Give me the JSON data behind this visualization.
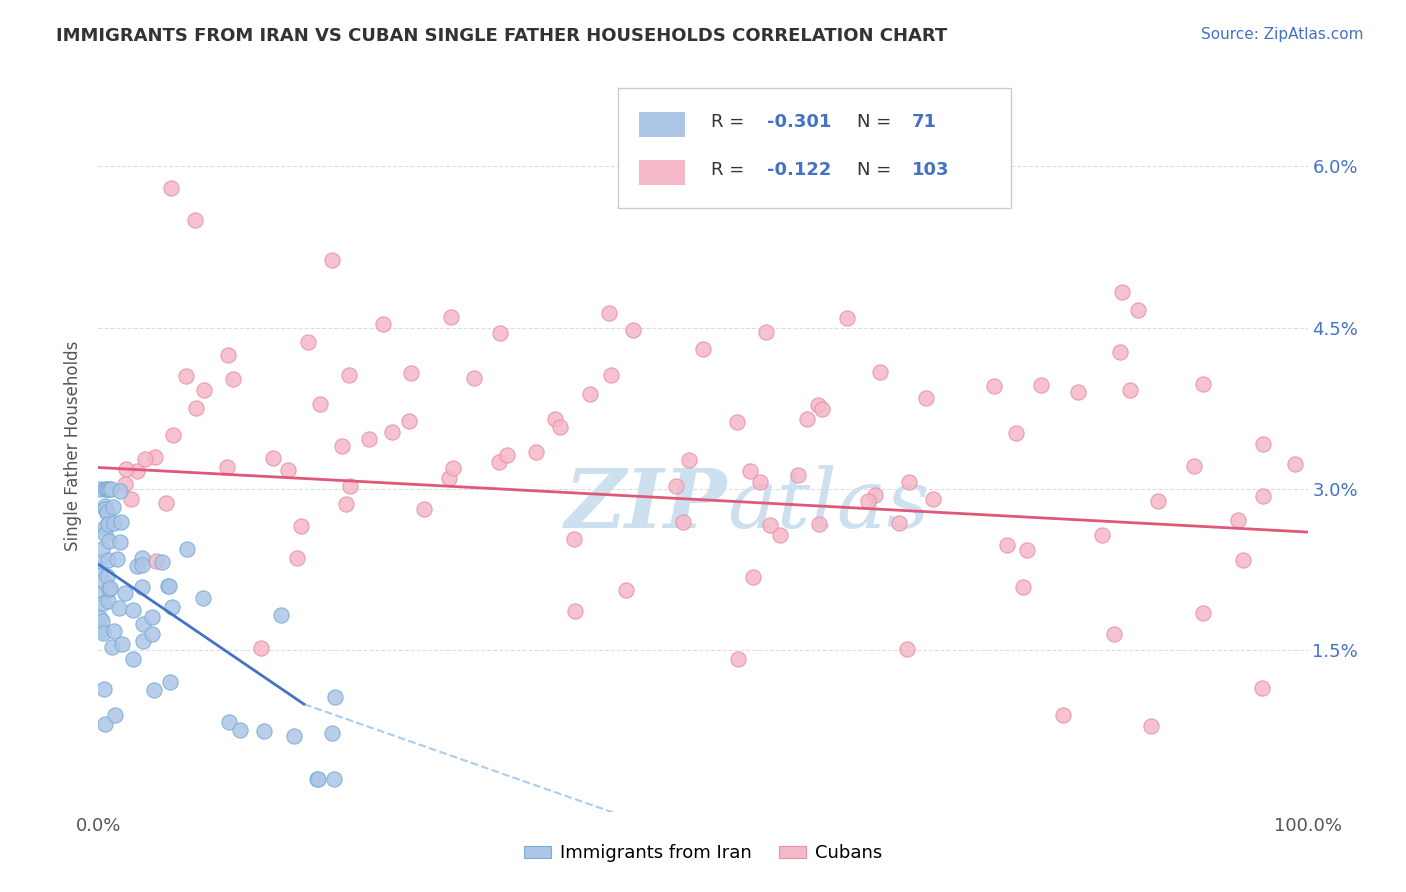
{
  "title": "IMMIGRANTS FROM IRAN VS CUBAN SINGLE FATHER HOUSEHOLDS CORRELATION CHART",
  "source": "Source: ZipAtlas.com",
  "ylabel": "Single Father Households",
  "xlim": [
    0.0,
    1.0
  ],
  "ylim": [
    0.0,
    0.068
  ],
  "ytick_vals": [
    0.0,
    0.015,
    0.03,
    0.045,
    0.06
  ],
  "ytick_labels": [
    "",
    "1.5%",
    "3.0%",
    "4.5%",
    "6.0%"
  ],
  "background_color": "#ffffff",
  "grid_color": "#dddddd",
  "iran_fill_color": "#adc6e8",
  "iran_edge_color": "#7aadd4",
  "cuba_fill_color": "#f5b8c8",
  "cuba_edge_color": "#e890a8",
  "iran_line_color": "#4472c4",
  "cuba_line_color": "#e05878",
  "dash_color": "#aaccee",
  "iran_R": -0.301,
  "iran_N": 71,
  "cuba_R": -0.122,
  "cuba_N": 103,
  "watermark_color": "#cce0f0",
  "legend_iran_color": "#adc6e8",
  "legend_cuba_color": "#f5b8c8",
  "axis_text_color": "#4472c4",
  "label_color": "#555555",
  "title_color": "#333333"
}
